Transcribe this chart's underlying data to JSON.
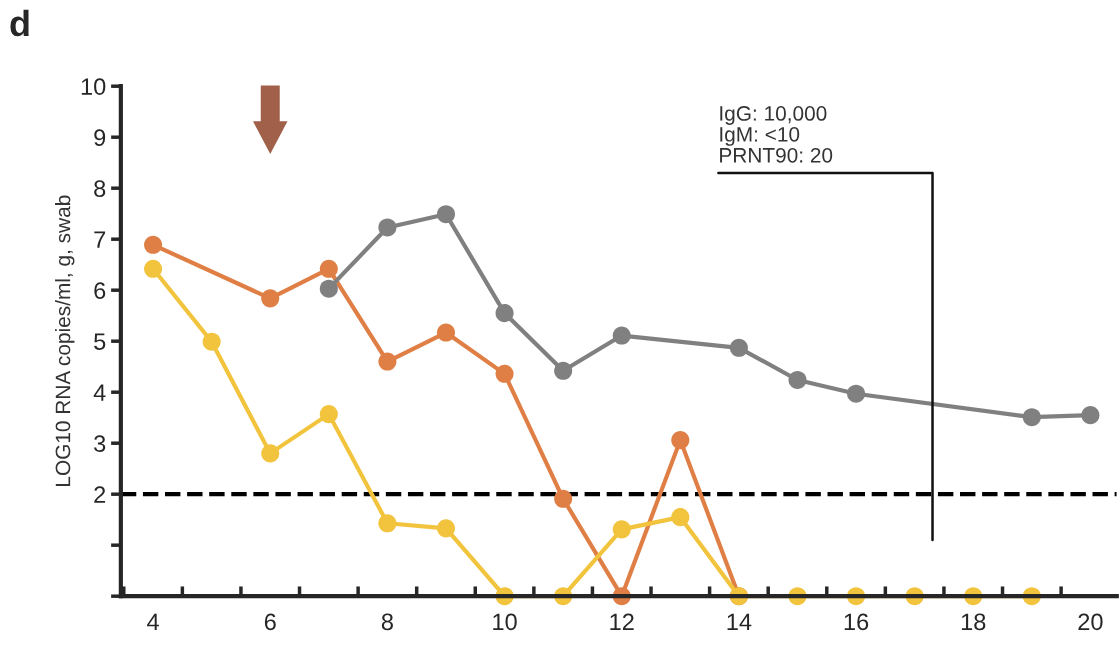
{
  "chart_data": {
    "type": "line",
    "title": "d",
    "ylabel": "LOG10 RNA copies/ml, g, swab",
    "series": [
      {
        "color": "#e07f45",
        "x": [
          4,
          6,
          7,
          8,
          9,
          10,
          11,
          12,
          13,
          14
        ],
        "values": [
          6.89,
          5.84,
          6.42,
          4.6,
          5.17,
          4.36,
          1.91,
          0,
          3.06,
          0
        ]
      },
      {
        "color": "#f2c33c",
        "x": [
          4,
          5,
          6,
          7,
          8,
          9,
          10,
          11,
          12,
          13,
          14,
          15,
          16,
          17,
          18,
          19
        ],
        "values": [
          6.42,
          4.99,
          2.8,
          3.57,
          1.43,
          1.33,
          0,
          0,
          1.31,
          1.55,
          0,
          0,
          0,
          0,
          0,
          0
        ]
      },
      {
        "color": "#808080",
        "x": [
          7,
          8,
          9,
          10,
          11,
          12,
          14,
          15,
          16,
          19,
          20
        ],
        "values": [
          6.03,
          7.23,
          7.49,
          5.55,
          4.42,
          5.11,
          4.87,
          4.24,
          3.97,
          3.51,
          3.55
        ]
      }
    ],
    "marker": "circle",
    "line_style": "solid",
    "grid": false,
    "legend": false,
    "xlim": [
      3.45,
      20.45
    ],
    "xticks": [
      {
        "value": 3.5,
        "label": null
      },
      {
        "value": 4,
        "label": "4"
      },
      {
        "value": 4.5,
        "label": null
      },
      {
        "value": 5.5,
        "label": null
      },
      {
        "value": 6,
        "label": "6"
      },
      {
        "value": 6.5,
        "label": null
      },
      {
        "value": 7.5,
        "label": null
      },
      {
        "value": 8,
        "label": "8"
      },
      {
        "value": 8.5,
        "label": null
      },
      {
        "value": 9.5,
        "label": null
      },
      {
        "value": 10,
        "label": "10"
      },
      {
        "value": 10.5,
        "label": null
      },
      {
        "value": 11.5,
        "label": null
      },
      {
        "value": 12,
        "label": "12"
      },
      {
        "value": 12.5,
        "label": null
      },
      {
        "value": 13.5,
        "label": null
      },
      {
        "value": 14,
        "label": "14"
      },
      {
        "value": 14.5,
        "label": null
      },
      {
        "value": 15.5,
        "label": null
      },
      {
        "value": 16,
        "label": "16"
      },
      {
        "value": 16.5,
        "label": null
      },
      {
        "value": 17.5,
        "label": null
      },
      {
        "value": 18,
        "label": "18"
      },
      {
        "value": 18.5,
        "label": null
      },
      {
        "value": 19.5,
        "label": null
      },
      {
        "value": 20,
        "label": "20"
      }
    ],
    "ylim": [
      0,
      10
    ],
    "yticks": [
      {
        "value": 0,
        "label": null
      },
      {
        "value": 1,
        "label": null
      },
      2,
      3,
      4,
      5,
      6,
      7,
      8,
      9,
      10
    ],
    "ref_lines": [
      {
        "axis": "y",
        "value": 2,
        "label": null,
        "color": "#000000",
        "line_style": "dashed"
      }
    ],
    "annotations": [
      "IgG: 10,000\nIgM: <10\nPRNT90: 20"
    ]
  }
}
